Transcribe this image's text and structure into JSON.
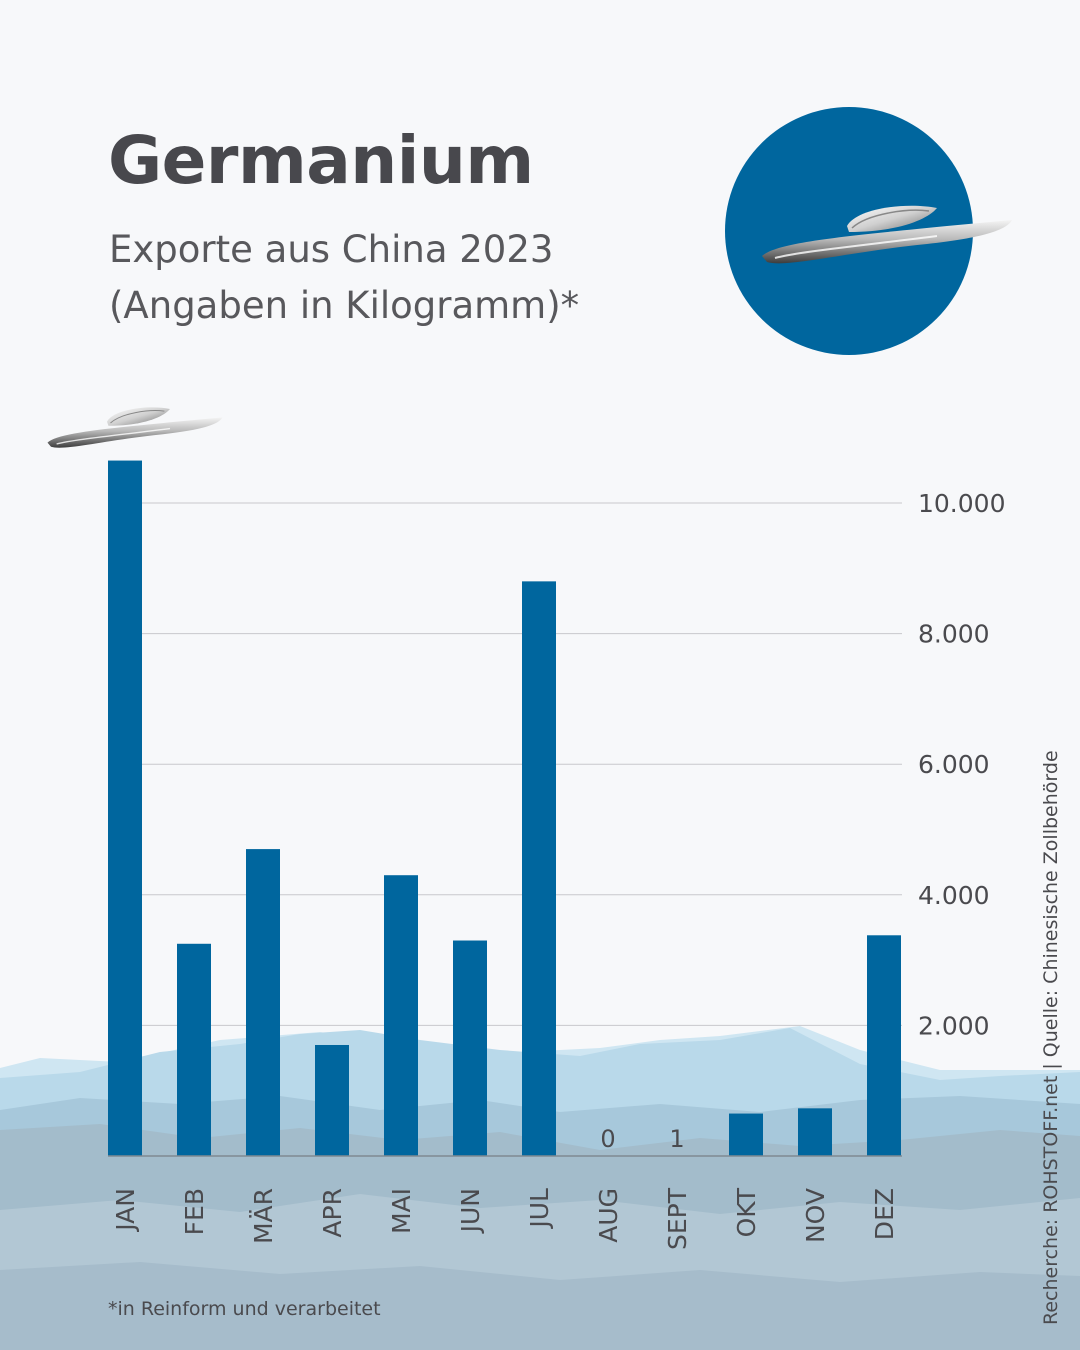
{
  "header": {
    "title": "Germanium",
    "subtitle_line1": "Exporte aus China 2023",
    "subtitle_line2": "(Angaben in Kilogramm)*"
  },
  "footnote": "*in Reinform und verarbeitet",
  "source": "Recherche: ROHSTOFF.net | Quelle: Chinesische Zollbehörde",
  "colors": {
    "bar": "#00669e",
    "badge": "#00669e",
    "grid": "#c8c8cc",
    "text": "#48484d"
  },
  "icons": {
    "badge": "germanium-boat-icon",
    "jan_topper": "germanium-boat-icon"
  },
  "chart_data": {
    "type": "bar",
    "title": "Germanium",
    "subtitle": "Exporte aus China 2023 (Angaben in Kilogramm)*",
    "categories": [
      "JAN",
      "FEB",
      "MÄR",
      "APR",
      "MAI",
      "JUN",
      "JUL",
      "AUG",
      "SEPT",
      "OKT",
      "NOV",
      "DEZ"
    ],
    "values": [
      10650,
      3250,
      4700,
      1700,
      4300,
      3300,
      8800,
      0,
      1,
      650,
      730,
      3380
    ],
    "data_labels": [
      {
        "category": "AUG",
        "text": "0"
      },
      {
        "category": "SEPT",
        "text": "1"
      }
    ],
    "yticks": [
      2000,
      4000,
      6000,
      8000,
      10000
    ],
    "ytick_labels": [
      "2.000",
      "4.000",
      "6.000",
      "8.000",
      "10.000"
    ],
    "ylim": [
      0,
      11000
    ],
    "xlabel": "",
    "ylabel": "",
    "grid": true,
    "legend": "none",
    "y_axis_side": "right"
  }
}
